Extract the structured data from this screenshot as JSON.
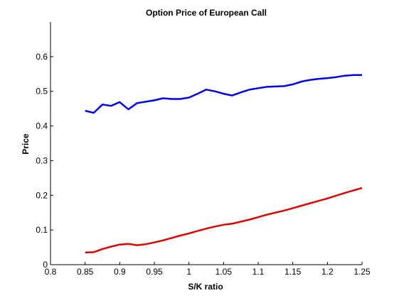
{
  "chart_data": {
    "type": "line",
    "title": "Option Price of European Call",
    "xlabel": "S/K ratio",
    "ylabel": "Price",
    "xlim": [
      0.8,
      1.25
    ],
    "ylim": [
      0,
      0.7
    ],
    "xticks": [
      0.8,
      0.85,
      0.9,
      0.95,
      1,
      1.05,
      1.1,
      1.15,
      1.2,
      1.25
    ],
    "xtick_labels": [
      "0.8",
      "0.85",
      "0.9",
      "0.95",
      "1",
      "1.05",
      "1.1",
      "1.15",
      "1.2",
      "1.25"
    ],
    "yticks": [
      0,
      0.1,
      0.2,
      0.3,
      0.4,
      0.5,
      0.6
    ],
    "ytick_labels": [
      "0",
      "0.1",
      "0.2",
      "0.3",
      "0.4",
      "0.5",
      "0.6"
    ],
    "grid": false,
    "series": [
      {
        "color": "#0000ee",
        "x": [
          0.85,
          0.8625,
          0.875,
          0.8875,
          0.9,
          0.9125,
          0.925,
          0.9375,
          0.95,
          0.9625,
          0.975,
          0.9875,
          1.0,
          1.0125,
          1.025,
          1.0375,
          1.05,
          1.0625,
          1.075,
          1.0875,
          1.1,
          1.1125,
          1.125,
          1.1375,
          1.15,
          1.1625,
          1.175,
          1.1875,
          1.2,
          1.2125,
          1.225,
          1.2375,
          1.25
        ],
        "y": [
          0.444,
          0.438,
          0.462,
          0.458,
          0.469,
          0.448,
          0.466,
          0.47,
          0.474,
          0.48,
          0.478,
          0.478,
          0.482,
          0.493,
          0.505,
          0.5,
          0.493,
          0.488,
          0.497,
          0.505,
          0.509,
          0.513,
          0.514,
          0.515,
          0.52,
          0.528,
          0.533,
          0.536,
          0.538,
          0.541,
          0.545,
          0.547,
          0.547
        ]
      },
      {
        "color": "#dd0000",
        "x": [
          0.85,
          0.8625,
          0.875,
          0.8875,
          0.9,
          0.9125,
          0.925,
          0.9375,
          0.95,
          0.9625,
          0.975,
          0.9875,
          1.0,
          1.0125,
          1.025,
          1.0375,
          1.05,
          1.0625,
          1.075,
          1.0875,
          1.1,
          1.1125,
          1.125,
          1.1375,
          1.15,
          1.1625,
          1.175,
          1.1875,
          1.2,
          1.2125,
          1.225,
          1.2375,
          1.25
        ],
        "y": [
          0.035,
          0.036,
          0.045,
          0.052,
          0.058,
          0.06,
          0.056,
          0.059,
          0.064,
          0.07,
          0.077,
          0.084,
          0.09,
          0.097,
          0.104,
          0.11,
          0.115,
          0.118,
          0.124,
          0.13,
          0.137,
          0.144,
          0.15,
          0.156,
          0.163,
          0.17,
          0.177,
          0.184,
          0.191,
          0.199,
          0.207,
          0.214,
          0.221
        ]
      }
    ]
  }
}
